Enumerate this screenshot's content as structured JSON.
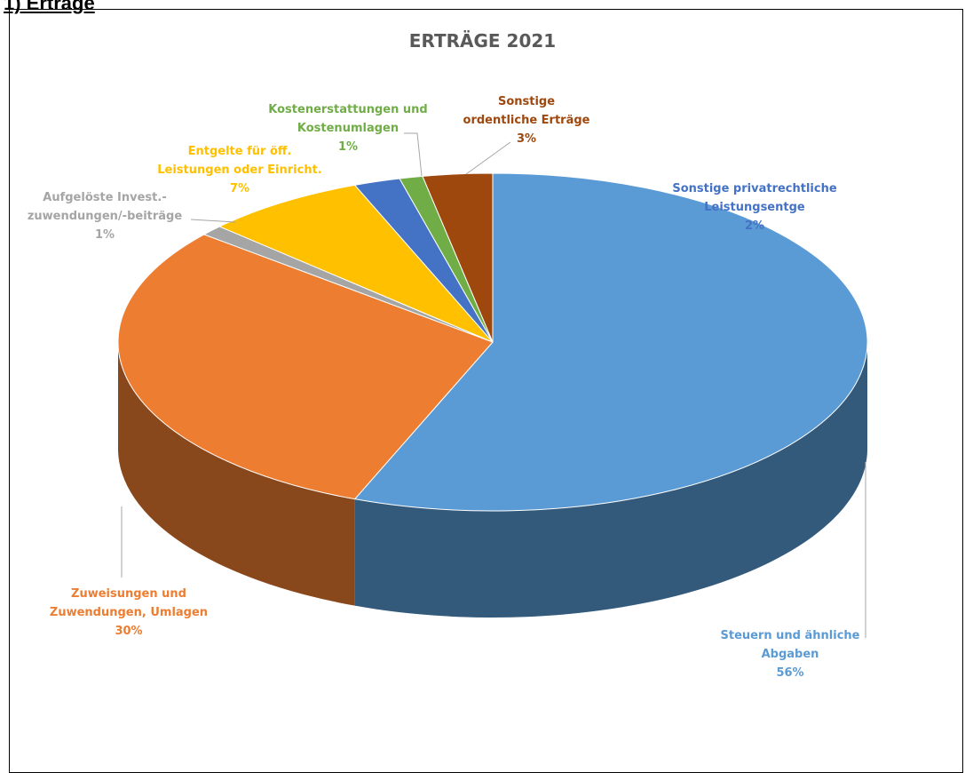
{
  "heading": "1) Erträge",
  "chart_data": {
    "type": "pie3d",
    "title": "ERTRÄGE 2021",
    "categories": [
      "Steuern und ähnliche Abgaben",
      "Zuweisungen und Zuwendungen, Umlagen",
      "Aufgelöste Invest.-zuwendungen/-beiträge",
      "Entgelte für öff. Leistungen oder Einricht.",
      "Sonstige privatrechtliche Leistungsentge",
      "Kostenerstattungen und Kostenumlagen",
      "Sonstige ordentliche Erträge"
    ],
    "values": [
      56,
      30,
      1,
      7,
      2,
      1,
      3
    ],
    "value_labels": [
      "56%",
      "30%",
      "1%",
      "7%",
      "2%",
      "1%",
      "3%"
    ],
    "colors": [
      "#5b9bd5",
      "#ed7d31",
      "#a5a5a5",
      "#ffc000",
      "#4472c4",
      "#70ad47",
      "#9e480e"
    ]
  }
}
